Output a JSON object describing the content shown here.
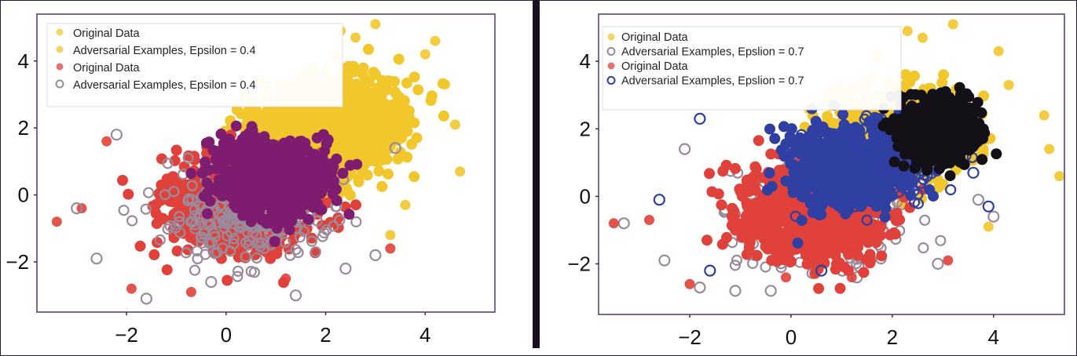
{
  "chart_data": [
    {
      "type": "scatter",
      "title": "",
      "xlabel": "",
      "ylabel": "",
      "xlim": [
        -3.8,
        5.4
      ],
      "ylim": [
        -3.5,
        5.4
      ],
      "xticks": [
        -2,
        0,
        2,
        4
      ],
      "xtick_labels": [
        "−2",
        "0",
        "2",
        "4"
      ],
      "yticks": [
        -2,
        0,
        2,
        4
      ],
      "ytick_labels": [
        "−2",
        "0",
        "2",
        "4"
      ],
      "grid": false,
      "legend_position": "top-left",
      "series": [
        {
          "name": "Original Data",
          "color": "#f2c72c",
          "marker": "filled-circle",
          "center": [
            1.7,
            1.6
          ],
          "spread": [
            1.2,
            1.2
          ],
          "outliers": [
            [
              3.0,
              5.1
            ],
            [
              2.6,
              4.7
            ],
            [
              4.0,
              4.2
            ],
            [
              4.6,
              2.1
            ],
            [
              4.7,
              0.7
            ],
            [
              4.2,
              4.6
            ],
            [
              3.6,
              -0.3
            ],
            [
              2.3,
              4.9
            ],
            [
              4.4,
              3.3
            ],
            [
              3.3,
              -1.2
            ]
          ]
        },
        {
          "name": "Adversarial Examples, Epsilon = 0.4",
          "color": "#f2c72c",
          "marker": "filled-circle",
          "center": [
            2.3,
            2.3
          ],
          "spread": [
            1.1,
            1.1
          ],
          "outliers": []
        },
        {
          "name": "Original Data",
          "color": "#e0413a",
          "marker": "filled-circle",
          "center": [
            0.2,
            -0.3
          ],
          "spread": [
            1.3,
            1.2
          ],
          "outliers": [
            [
              -3.4,
              -0.8
            ],
            [
              -2.9,
              -0.4
            ],
            [
              -1.9,
              -2.8
            ],
            [
              -0.7,
              -2.9
            ],
            [
              1.2,
              -2.5
            ],
            [
              3.3,
              -1.6
            ],
            [
              -2.4,
              1.6
            ]
          ]
        },
        {
          "name": "Adversarial Examples, Epsilon = 0.4",
          "color": "#9a8b9c",
          "marker": "hollow-circle",
          "center": [
            0.3,
            -0.5
          ],
          "spread": [
            1.5,
            1.3
          ],
          "outliers": [
            [
              -3.0,
              -0.4
            ],
            [
              -2.6,
              -1.9
            ],
            [
              -1.6,
              -3.1
            ],
            [
              -0.3,
              -2.6
            ],
            [
              1.4,
              -3.0
            ],
            [
              3.0,
              -1.8
            ],
            [
              2.4,
              -2.2
            ],
            [
              3.4,
              1.4
            ],
            [
              -2.2,
              1.8
            ]
          ]
        },
        {
          "name": "",
          "color": "#7e1d70",
          "marker": "filled-circle",
          "center": [
            0.9,
            0.5
          ],
          "spread": [
            1.0,
            1.0
          ],
          "outliers": []
        }
      ]
    },
    {
      "type": "scatter",
      "title": "",
      "xlabel": "",
      "ylabel": "",
      "xlim": [
        -3.8,
        5.4
      ],
      "ylim": [
        -3.5,
        5.4
      ],
      "xticks": [
        -2,
        0,
        2,
        4
      ],
      "xtick_labels": [
        "−2",
        "0",
        "2",
        "4"
      ],
      "yticks": [
        -2,
        0,
        2,
        4
      ],
      "ytick_labels": [
        "−2",
        "0",
        "2",
        "4"
      ],
      "grid": false,
      "legend_position": "top-left",
      "series": [
        {
          "name": "Original Data",
          "color": "#f2c72c",
          "marker": "filled-circle",
          "center": [
            2.0,
            1.8
          ],
          "spread": [
            1.2,
            1.2
          ],
          "outliers": [
            [
              3.2,
              5.1
            ],
            [
              2.6,
              4.7
            ],
            [
              4.1,
              4.3
            ],
            [
              5.1,
              1.4
            ],
            [
              5.3,
              0.6
            ],
            [
              4.3,
              3.3
            ],
            [
              3.9,
              -0.9
            ],
            [
              2.3,
              4.9
            ],
            [
              5.0,
              2.4
            ]
          ]
        },
        {
          "name": "Adversarial Examples, Epslion = 0.7",
          "color": "#9a8b9c",
          "marker": "hollow-circle",
          "center": [
            0.6,
            -0.6
          ],
          "spread": [
            1.6,
            1.4
          ],
          "outliers": [
            [
              -3.3,
              -0.8
            ],
            [
              -2.5,
              -1.9
            ],
            [
              -1.8,
              -2.7
            ],
            [
              -0.4,
              -2.8
            ],
            [
              1.3,
              -2.4
            ],
            [
              2.9,
              -2.0
            ],
            [
              4.0,
              -0.6
            ],
            [
              3.7,
              -0.1
            ],
            [
              -1.1,
              -2.8
            ],
            [
              -2.1,
              1.4
            ]
          ]
        },
        {
          "name": "Original Data",
          "color": "#e0413a",
          "marker": "filled-circle",
          "center": [
            0.4,
            -0.5
          ],
          "spread": [
            1.3,
            1.2
          ],
          "outliers": [
            [
              -3.5,
              -0.8
            ],
            [
              -2.8,
              -0.7
            ],
            [
              -2.0,
              -2.6
            ],
            [
              -0.1,
              -2.4
            ],
            [
              1.2,
              -2.4
            ],
            [
              3.1,
              -1.9
            ]
          ]
        },
        {
          "name": "Adversarial Examples, Epslion = 0.7",
          "color": "#2e3fa2",
          "marker": "hollow-circle",
          "center": [
            1.8,
            0.9
          ],
          "spread": [
            1.2,
            1.1
          ],
          "outliers": [
            [
              -2.6,
              -0.1
            ],
            [
              -1.6,
              -2.2
            ],
            [
              0.6,
              -2.2
            ],
            [
              3.9,
              -0.3
            ],
            [
              3.6,
              0.7
            ],
            [
              -1.8,
              2.3
            ]
          ]
        },
        {
          "name": "",
          "color": "#2f3fa2",
          "marker": "filled-circle",
          "center": [
            1.1,
            0.8
          ],
          "spread": [
            1.0,
            1.0
          ],
          "outliers": []
        },
        {
          "name": "",
          "color": "#131018",
          "marker": "filled-circle",
          "center": [
            2.9,
            1.9
          ],
          "spread": [
            0.6,
            0.8
          ],
          "outliers": []
        }
      ]
    }
  ]
}
